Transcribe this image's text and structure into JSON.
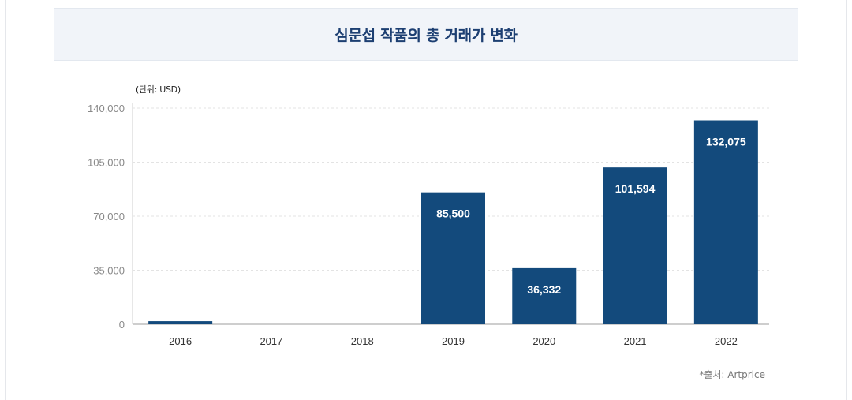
{
  "chart_data": {
    "type": "bar",
    "title": "심문섭 작품의 총 거래가 변화",
    "unit_label": "(단위: USD)",
    "source": "*출처: Artprice",
    "categories": [
      "2016",
      "2017",
      "2018",
      "2019",
      "2020",
      "2021",
      "2022"
    ],
    "values": [
      2000,
      0,
      0,
      85500,
      36332,
      101594,
      132075
    ],
    "data_labels": [
      "",
      "",
      "",
      "85,500",
      "36,332",
      "101,594",
      "132,075"
    ],
    "y_ticks": [
      0,
      35000,
      70000,
      105000,
      140000
    ],
    "y_tick_labels": [
      "0",
      "35,000",
      "70,000",
      "105,000",
      "140,000"
    ],
    "ylim": [
      0,
      140000
    ],
    "grid": true,
    "legend": "none",
    "bar_color": "#134a7c"
  }
}
